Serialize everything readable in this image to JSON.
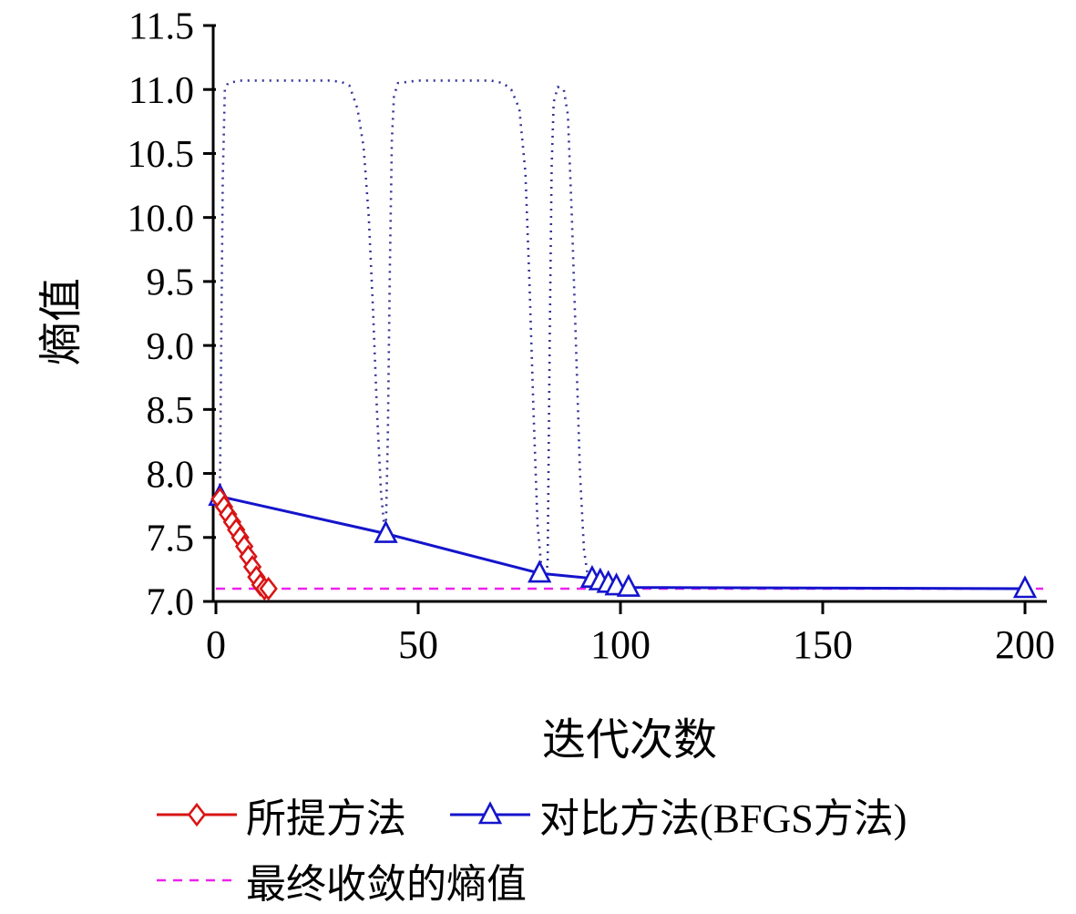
{
  "chart_data": {
    "type": "line",
    "title": "",
    "xlabel": "迭代次数",
    "ylabel": "熵值",
    "xlim": [
      0,
      204.5
    ],
    "ylim": [
      7.0,
      11.5
    ],
    "xticks": [
      0,
      50,
      100,
      150,
      200
    ],
    "yticks": [
      7.0,
      7.5,
      8.0,
      8.5,
      9.0,
      9.5,
      10.0,
      10.5,
      11.0,
      11.5
    ],
    "grid": false,
    "axis_color": "#000000",
    "legend_rows": [
      [
        0,
        1
      ],
      [
        3
      ]
    ],
    "series": [
      {
        "name": "所提方法",
        "color": "#d91414",
        "marker": "diamond",
        "line": "solid",
        "legend": true,
        "x": [
          1,
          2,
          3,
          4,
          5,
          6,
          7,
          8,
          9,
          10,
          11,
          12,
          13
        ],
        "y": [
          7.8,
          7.74,
          7.68,
          7.62,
          7.56,
          7.5,
          7.43,
          7.35,
          7.27,
          7.19,
          7.13,
          7.1,
          7.1
        ]
      },
      {
        "name": "对比方法(BFGS方法)",
        "color": "#1414cc",
        "marker": "triangle",
        "line": "solid",
        "legend": true,
        "x": [
          1,
          42,
          80,
          93,
          95,
          97,
          99,
          102,
          200
        ],
        "y": [
          7.82,
          7.53,
          7.22,
          7.18,
          7.16,
          7.14,
          7.12,
          7.11,
          7.1
        ]
      },
      {
        "name": "BFGS迭代过程轨迹",
        "color": "#333399",
        "marker": "none",
        "line": "dotted",
        "legend": false,
        "x": [
          1,
          1.3,
          1.7,
          2.2,
          3,
          6,
          12,
          20,
          28,
          31,
          33,
          35,
          36.5,
          37.8,
          38.8,
          39.8,
          40.8,
          41.5,
          42,
          42.5,
          43,
          43.5,
          44,
          45,
          50,
          60,
          68,
          71,
          73,
          75,
          76.5,
          77.5,
          78.5,
          79.5,
          80.5,
          81.5,
          82,
          82.5,
          83,
          83.5,
          84.5,
          86,
          87,
          88,
          89,
          90,
          91,
          92,
          93,
          95,
          100,
          102
        ],
        "y": [
          7.85,
          9.0,
          10.3,
          11.0,
          11.05,
          11.07,
          11.07,
          11.07,
          11.07,
          11.06,
          11.03,
          10.85,
          10.55,
          10.0,
          9.3,
          8.5,
          7.85,
          7.62,
          7.55,
          8.3,
          9.6,
          10.6,
          10.95,
          11.05,
          11.07,
          11.07,
          11.07,
          11.05,
          11.0,
          10.85,
          10.35,
          9.5,
          8.5,
          7.6,
          7.25,
          7.18,
          7.3,
          9.0,
          10.4,
          10.9,
          11.02,
          11.0,
          10.8,
          10.0,
          9.0,
          8.0,
          7.4,
          7.18,
          7.12,
          7.1,
          7.1,
          7.1
        ]
      },
      {
        "name": "最终收敛的熵值",
        "color": "#ee22ee",
        "marker": "none",
        "line": "dashed",
        "legend": true,
        "x": [
          0,
          204.5
        ],
        "y": [
          7.1,
          7.1
        ]
      }
    ]
  }
}
